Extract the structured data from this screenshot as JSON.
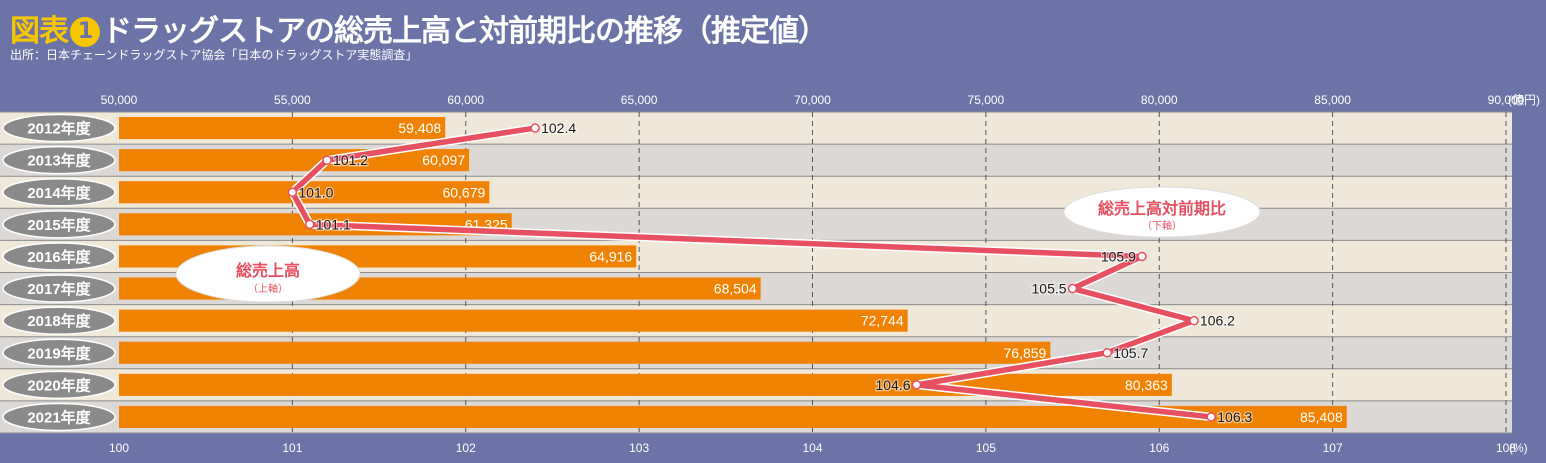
{
  "title": {
    "tag": "図表",
    "number": "1",
    "text": "ドラッグストアの総売上高と対前期比の推移（推定値）"
  },
  "source": "出所：日本チェーンドラッグストア協会「日本のドラッグストア実態調査」",
  "colors": {
    "background": "#6c73a6",
    "bar": "#ef8200",
    "line": "#e65060",
    "row_light": "#efe8d8",
    "row_dark": "#dcd8d6",
    "label_pill": "#8a8a8a"
  },
  "chart_data": {
    "type": "bar+line",
    "categories": [
      "2012年度",
      "2013年度",
      "2014年度",
      "2015年度",
      "2016年度",
      "2017年度",
      "2018年度",
      "2019年度",
      "2020年度",
      "2021年度"
    ],
    "series": [
      {
        "name": "総売上高",
        "axis": "top",
        "values": [
          59408,
          60097,
          60679,
          61325,
          64916,
          68504,
          72744,
          76859,
          80363,
          85408
        ],
        "value_labels": [
          "59,408",
          "60,097",
          "60,679",
          "61,325",
          "64,916",
          "68,504",
          "72,744",
          "76,859",
          "80,363",
          "85,408"
        ]
      },
      {
        "name": "総売上高対前期比",
        "axis": "bottom",
        "values": [
          102.4,
          101.2,
          101.0,
          101.1,
          105.9,
          105.5,
          106.2,
          105.7,
          104.6,
          106.3
        ],
        "value_labels": [
          "102.4",
          "101.2",
          "101.0",
          "101.1",
          "105.9",
          "105.5",
          "106.2",
          "105.7",
          "104.6",
          "106.3"
        ]
      }
    ],
    "top_axis": {
      "range": [
        50000,
        90000
      ],
      "ticks": [
        50000,
        55000,
        60000,
        65000,
        70000,
        75000,
        80000,
        85000,
        90000
      ],
      "tick_labels": [
        "50,000",
        "55,000",
        "60,000",
        "65,000",
        "70,000",
        "75,000",
        "80,000",
        "85,000",
        "90,000"
      ],
      "unit": "(億円)"
    },
    "bottom_axis": {
      "range": [
        100,
        108
      ],
      "ticks": [
        100,
        101,
        102,
        103,
        104,
        105,
        106,
        107,
        108
      ],
      "tick_labels": [
        "100",
        "101",
        "102",
        "103",
        "104",
        "105",
        "106",
        "107",
        "108"
      ],
      "unit": "(%)"
    },
    "callouts": [
      {
        "title": "総売上高",
        "sub": "（上軸）"
      },
      {
        "title": "総売上高対前期比",
        "sub": "（下軸）"
      }
    ],
    "grid": "vertical dashed"
  }
}
